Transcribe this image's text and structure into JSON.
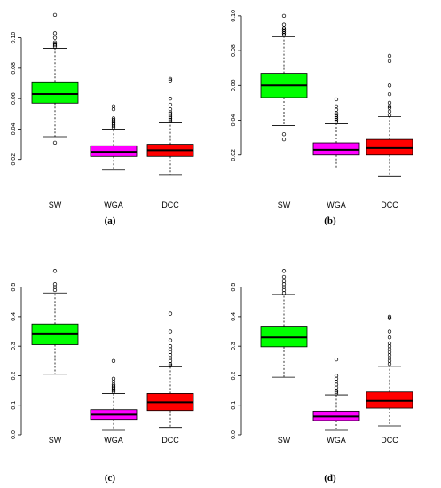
{
  "chart_data": [
    {
      "type": "box",
      "panel_label": "(a)",
      "categories": [
        "SW",
        "WGA",
        "DCC"
      ],
      "ylim": [
        0.0,
        0.119
      ],
      "yticks": [
        0.02,
        0.04,
        0.06,
        0.08,
        0.1
      ],
      "ytick_labels": [
        "0.02",
        "0.04",
        "0.06",
        "0.08",
        "0.10"
      ],
      "boxes": [
        {
          "min": 0.035,
          "q1": 0.057,
          "median": 0.063,
          "q3": 0.071,
          "max": 0.093,
          "outliers": [
            0.031,
            0.094,
            0.095,
            0.096,
            0.097,
            0.1,
            0.103,
            0.115
          ]
        },
        {
          "min": 0.013,
          "q1": 0.022,
          "median": 0.025,
          "q3": 0.029,
          "max": 0.04,
          "outliers": [
            0.041,
            0.042,
            0.043,
            0.044,
            0.045,
            0.046,
            0.047,
            0.053,
            0.055
          ]
        },
        {
          "min": 0.01,
          "q1": 0.022,
          "median": 0.026,
          "q3": 0.03,
          "max": 0.044,
          "outliers": [
            0.045,
            0.046,
            0.047,
            0.048,
            0.049,
            0.05,
            0.051,
            0.053,
            0.056,
            0.06,
            0.072,
            0.073
          ]
        }
      ]
    },
    {
      "type": "box",
      "panel_label": "(b)",
      "categories": [
        "SW",
        "WGA",
        "DCC"
      ],
      "ylim": [
        0.0,
        0.104
      ],
      "yticks": [
        0.02,
        0.04,
        0.06,
        0.08,
        0.1
      ],
      "ytick_labels": [
        "0.02",
        "0.04",
        "0.06",
        "0.08",
        "0.10"
      ],
      "boxes": [
        {
          "min": 0.037,
          "q1": 0.053,
          "median": 0.06,
          "q3": 0.067,
          "max": 0.088,
          "outliers": [
            0.029,
            0.032,
            0.089,
            0.09,
            0.091,
            0.092,
            0.093,
            0.095,
            0.1
          ]
        },
        {
          "min": 0.012,
          "q1": 0.02,
          "median": 0.023,
          "q3": 0.027,
          "max": 0.038,
          "outliers": [
            0.039,
            0.04,
            0.041,
            0.042,
            0.043,
            0.044,
            0.046,
            0.048,
            0.052
          ]
        },
        {
          "min": 0.008,
          "q1": 0.02,
          "median": 0.024,
          "q3": 0.029,
          "max": 0.042,
          "outliers": [
            0.043,
            0.045,
            0.047,
            0.048,
            0.05,
            0.055,
            0.06,
            0.074,
            0.077
          ]
        }
      ]
    },
    {
      "type": "box",
      "panel_label": "(c)",
      "categories": [
        "SW",
        "WGA",
        "DCC"
      ],
      "ylim": [
        0.0,
        0.58
      ],
      "yticks": [
        0.0,
        0.1,
        0.2,
        0.3,
        0.4,
        0.5
      ],
      "ytick_labels": [
        "0.0",
        "0.1",
        "0.2",
        "0.3",
        "0.4",
        "0.5"
      ],
      "boxes": [
        {
          "min": 0.205,
          "q1": 0.305,
          "median": 0.343,
          "q3": 0.375,
          "max": 0.48,
          "outliers": [
            0.49,
            0.5,
            0.51,
            0.555
          ]
        },
        {
          "min": 0.015,
          "q1": 0.052,
          "median": 0.068,
          "q3": 0.085,
          "max": 0.14,
          "outliers": [
            0.145,
            0.15,
            0.155,
            0.16,
            0.165,
            0.17,
            0.18,
            0.19,
            0.25
          ]
        },
        {
          "min": 0.025,
          "q1": 0.082,
          "median": 0.11,
          "q3": 0.14,
          "max": 0.23,
          "outliers": [
            0.235,
            0.24,
            0.25,
            0.26,
            0.27,
            0.28,
            0.29,
            0.3,
            0.32,
            0.35,
            0.41
          ]
        }
      ]
    },
    {
      "type": "box",
      "panel_label": "(d)",
      "categories": [
        "SW",
        "WGA",
        "DCC"
      ],
      "ylim": [
        0.0,
        0.58
      ],
      "yticks": [
        0.0,
        0.1,
        0.2,
        0.3,
        0.4,
        0.5
      ],
      "ytick_labels": [
        "0.0",
        "0.1",
        "0.2",
        "0.3",
        "0.4",
        "0.5"
      ],
      "boxes": [
        {
          "min": 0.195,
          "q1": 0.298,
          "median": 0.33,
          "q3": 0.368,
          "max": 0.475,
          "outliers": [
            0.48,
            0.49,
            0.5,
            0.51,
            0.52,
            0.535,
            0.555
          ]
        },
        {
          "min": 0.015,
          "q1": 0.048,
          "median": 0.062,
          "q3": 0.08,
          "max": 0.135,
          "outliers": [
            0.14,
            0.145,
            0.15,
            0.16,
            0.17,
            0.18,
            0.19,
            0.2,
            0.255
          ]
        },
        {
          "min": 0.03,
          "q1": 0.09,
          "median": 0.115,
          "q3": 0.145,
          "max": 0.232,
          "outliers": [
            0.24,
            0.25,
            0.26,
            0.27,
            0.28,
            0.29,
            0.3,
            0.31,
            0.33,
            0.35,
            0.395,
            0.4
          ]
        }
      ]
    }
  ],
  "colors": {
    "SW": "#00ff00",
    "WGA": "#ff00ff",
    "DCC": "#ff0000"
  },
  "captions": [
    "(a)",
    "(b)",
    "(c)",
    "(d)"
  ]
}
